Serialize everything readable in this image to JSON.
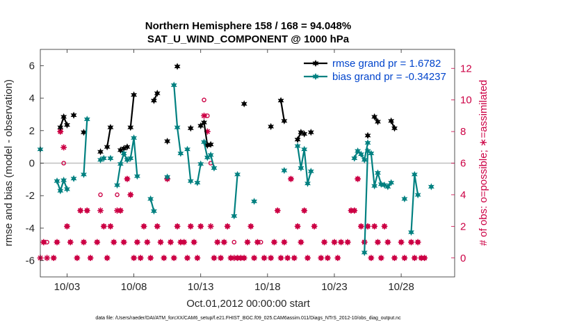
{
  "chart_data": {
    "type": "line",
    "title": "Northern Hemisphere 158 / 168 = 94.048%",
    "subtitle": "SAT_U_WIND_COMPONENT @ 1000 hPa",
    "xlabel": "Oct.01,2012 00:00:00 start",
    "ylabel": "rmse and bias (model - observation)",
    "y2label": "# of obs: o=possible; ∗=assimilated",
    "footnote": "data file: /Users/raeder/DAI/ATM_forcXX/CAM6_setup/f.e21.FHIST_BGC.f09_025.CAM6assim.011/Diags_NTrS_2012-10/obs_diag_output.nc",
    "xlim": [
      1.0,
      32.0
    ],
    "ylim": [
      -7,
      7
    ],
    "y2lim": [
      -1.2,
      13.2
    ],
    "x_ticks": [
      3,
      8,
      13,
      18,
      23,
      28
    ],
    "x_tick_labels": [
      "10/03",
      "10/08",
      "10/13",
      "10/18",
      "10/23",
      "10/28"
    ],
    "y_ticks": [
      -6,
      -4,
      -2,
      0,
      2,
      4,
      6
    ],
    "y2_ticks": [
      0,
      2,
      4,
      6,
      8,
      10,
      12
    ],
    "legend_position": "top-right",
    "grid": false,
    "zero_line": 0,
    "series": [
      {
        "name": "rmse grand pr = 1.6782",
        "axis": "left",
        "color": "#000000",
        "marker": "hexagram",
        "points": [
          [
            2.5,
            2.2
          ],
          [
            2.75,
            2.85
          ],
          [
            3.0,
            2.35
          ],
          null,
          [
            3.5,
            2.95
          ],
          null,
          [
            4.25,
            1.9
          ],
          null,
          [
            5.5,
            0.7
          ],
          null,
          [
            6.0,
            1.0
          ],
          [
            6.25,
            2.2
          ],
          null,
          [
            7.0,
            0.8
          ],
          [
            7.25,
            0.9
          ],
          [
            7.5,
            1.0
          ],
          null,
          [
            7.75,
            2.2
          ],
          [
            8.0,
            4.2
          ],
          null,
          [
            9.5,
            3.85
          ],
          [
            9.75,
            4.3
          ],
          null,
          [
            10.5,
            1.35
          ],
          null,
          [
            11.25,
            5.95
          ],
          null,
          [
            12.25,
            2.15
          ],
          null,
          [
            13.0,
            2.3
          ],
          null,
          [
            13.25,
            2.5
          ],
          [
            13.5,
            1.1
          ],
          [
            13.75,
            1.15
          ],
          null,
          [
            16.25,
            3.65
          ],
          null,
          [
            18.25,
            2.25
          ],
          null,
          [
            19.0,
            3.85
          ],
          [
            19.25,
            2.6
          ],
          null,
          [
            20.25,
            1.45
          ],
          [
            20.5,
            1.9
          ],
          [
            20.75,
            1.8
          ],
          null,
          [
            21.25,
            1.9
          ],
          null,
          [
            25.5,
            1.7
          ],
          null,
          [
            26.0,
            2.85
          ],
          [
            26.25,
            2.55
          ],
          null,
          [
            27.25,
            2.6
          ],
          [
            27.5,
            2.15
          ]
        ]
      },
      {
        "name": "bias grand pr = -0.34237",
        "axis": "left",
        "color": "#008080",
        "marker": "hexagram",
        "points": [
          [
            1.0,
            0.85
          ],
          null,
          [
            2.25,
            -1.1
          ],
          [
            2.5,
            -1.7
          ],
          [
            2.75,
            -1.05
          ],
          [
            3.0,
            -1.6
          ],
          null,
          [
            3.5,
            -0.95
          ],
          null,
          [
            4.25,
            -0.7
          ],
          [
            4.5,
            2.7
          ],
          null,
          [
            5.5,
            0.2
          ],
          [
            5.75,
            0.3
          ],
          null,
          [
            6.25,
            0.3
          ],
          null,
          [
            6.75,
            -1.35
          ],
          [
            7.0,
            -0.05
          ],
          [
            7.25,
            0.6
          ],
          [
            7.5,
            0.2
          ],
          null,
          [
            7.75,
            0.3
          ],
          [
            8.0,
            1.55
          ],
          [
            8.25,
            -0.8
          ],
          null,
          [
            9.25,
            -2.2
          ],
          [
            9.5,
            -2.95
          ],
          null,
          [
            10.5,
            -0.85
          ],
          null,
          [
            11.0,
            4.8
          ],
          [
            11.25,
            2.2
          ],
          [
            11.5,
            0.6
          ],
          null,
          [
            12.0,
            0.85
          ],
          [
            12.25,
            -1.1
          ],
          null,
          [
            12.75,
            -1.2
          ],
          [
            13.0,
            -0.05
          ],
          null,
          [
            13.25,
            1.3
          ],
          [
            13.5,
            0.35
          ],
          [
            13.75,
            0.5
          ],
          [
            14.0,
            -0.3
          ],
          null,
          [
            15.5,
            -3.25
          ],
          [
            15.75,
            -0.7
          ],
          null,
          [
            17.0,
            -2.35
          ],
          null,
          [
            19.25,
            -0.45
          ],
          null,
          [
            20.25,
            1.05
          ],
          [
            20.5,
            -0.3
          ],
          [
            20.75,
            0.85
          ],
          [
            21.0,
            -1.25
          ],
          [
            21.25,
            -0.5
          ],
          null,
          [
            24.5,
            0.3
          ],
          [
            24.75,
            0.75
          ],
          [
            25.0,
            0.55
          ],
          [
            25.25,
            0.2
          ],
          [
            25.5,
            1.25
          ],
          null,
          [
            25.25,
            -5.5
          ],
          [
            25.5,
            0.75
          ],
          [
            25.75,
            0.6
          ],
          [
            26.0,
            -1.4
          ],
          [
            26.25,
            -0.6
          ],
          [
            26.5,
            -1.3
          ],
          [
            26.75,
            -1.35
          ],
          [
            27.0,
            -1.45
          ],
          [
            27.25,
            -1.2
          ],
          null,
          [
            28.25,
            -2.2
          ],
          null,
          [
            28.75,
            -4.25
          ],
          [
            29.0,
            -0.7
          ],
          [
            29.25,
            -1.95
          ],
          null,
          [
            30.25,
            -1.45
          ]
        ]
      }
    ],
    "obs_possible": [
      [
        1.25,
        1
      ],
      [
        1.5,
        1
      ],
      [
        2.0,
        0
      ],
      [
        2.25,
        1
      ],
      [
        2.5,
        8
      ],
      [
        2.75,
        6
      ],
      [
        3.0,
        2
      ],
      [
        3.25,
        1
      ],
      [
        3.75,
        0
      ],
      [
        4.0,
        3
      ],
      [
        4.25,
        1
      ],
      [
        4.5,
        3
      ],
      [
        4.75,
        0
      ],
      [
        5.25,
        1
      ],
      [
        5.5,
        4
      ],
      [
        5.75,
        2
      ],
      [
        6.0,
        0
      ],
      [
        6.25,
        2
      ],
      [
        6.5,
        1
      ],
      [
        6.75,
        4
      ],
      [
        7.0,
        3
      ],
      [
        7.25,
        1
      ],
      [
        7.5,
        5
      ],
      [
        7.75,
        4
      ],
      [
        8.0,
        0
      ],
      [
        8.25,
        1
      ],
      [
        8.5,
        0
      ],
      [
        8.75,
        2
      ],
      [
        9.0,
        1
      ],
      [
        9.25,
        0
      ],
      [
        9.75,
        2
      ],
      [
        10.0,
        1
      ],
      [
        10.25,
        0
      ],
      [
        10.5,
        5
      ],
      [
        10.75,
        1
      ],
      [
        11.0,
        0
      ],
      [
        11.25,
        2
      ],
      [
        11.5,
        1
      ],
      [
        11.75,
        1
      ],
      [
        12.0,
        0
      ],
      [
        12.25,
        2
      ],
      [
        12.5,
        1
      ],
      [
        12.75,
        0
      ],
      [
        13.0,
        2
      ],
      [
        13.25,
        10
      ],
      [
        13.5,
        9
      ],
      [
        13.75,
        6
      ],
      [
        14.0,
        0
      ],
      [
        14.25,
        1
      ],
      [
        14.5,
        0
      ],
      [
        14.75,
        1
      ],
      [
        15.0,
        2
      ],
      [
        15.25,
        0
      ],
      [
        15.5,
        1
      ],
      [
        15.75,
        0
      ],
      [
        16.0,
        0
      ],
      [
        16.25,
        0
      ],
      [
        16.5,
        1
      ],
      [
        16.75,
        2
      ],
      [
        17.0,
        0
      ],
      [
        17.25,
        1
      ],
      [
        17.5,
        1
      ],
      [
        17.75,
        0
      ],
      [
        18.25,
        0
      ],
      [
        18.5,
        1
      ],
      [
        18.75,
        3
      ],
      [
        19.0,
        0
      ],
      [
        19.25,
        1
      ],
      [
        19.5,
        0
      ],
      [
        19.75,
        5
      ],
      [
        20.0,
        0
      ],
      [
        20.25,
        2
      ],
      [
        20.5,
        1
      ],
      [
        20.75,
        3
      ],
      [
        21.0,
        0
      ],
      [
        21.5,
        2
      ],
      [
        22.0,
        0
      ],
      [
        22.25,
        1
      ],
      [
        22.5,
        0
      ],
      [
        23.0,
        1
      ],
      [
        23.25,
        0
      ],
      [
        23.5,
        1
      ],
      [
        24.0,
        1
      ],
      [
        24.25,
        3
      ],
      [
        24.5,
        3
      ],
      [
        24.75,
        5
      ],
      [
        25.0,
        2
      ],
      [
        25.25,
        1
      ],
      [
        25.5,
        2
      ],
      [
        25.75,
        0
      ],
      [
        26.0,
        2
      ],
      [
        26.25,
        1
      ],
      [
        26.5,
        0
      ],
      [
        26.75,
        2
      ],
      [
        27.0,
        1
      ],
      [
        27.5,
        0
      ],
      [
        28.0,
        1
      ],
      [
        28.25,
        0
      ],
      [
        28.75,
        1
      ],
      [
        29.0,
        0
      ],
      [
        29.25,
        1
      ],
      [
        29.5,
        0
      ],
      [
        29.75,
        0
      ]
    ],
    "obs_assimilated": [
      [
        1.0,
        0
      ],
      [
        1.25,
        1
      ],
      [
        1.5,
        0
      ],
      [
        2.0,
        0
      ],
      [
        2.25,
        1
      ],
      [
        2.5,
        8
      ],
      [
        2.75,
        7
      ],
      [
        3.0,
        2
      ],
      [
        3.25,
        1
      ],
      [
        3.75,
        0
      ],
      [
        4.0,
        3
      ],
      [
        4.25,
        1
      ],
      [
        4.5,
        3
      ],
      [
        4.75,
        0
      ],
      [
        5.25,
        1
      ],
      [
        5.5,
        3
      ],
      [
        5.75,
        2
      ],
      [
        6.0,
        0
      ],
      [
        6.25,
        2
      ],
      [
        6.5,
        1
      ],
      [
        6.75,
        3
      ],
      [
        7.0,
        3
      ],
      [
        7.25,
        1
      ],
      [
        7.5,
        5
      ],
      [
        7.75,
        4
      ],
      [
        8.0,
        0
      ],
      [
        8.25,
        1
      ],
      [
        8.5,
        0
      ],
      [
        8.75,
        2
      ],
      [
        9.0,
        1
      ],
      [
        9.25,
        0
      ],
      [
        9.75,
        2
      ],
      [
        10.0,
        1
      ],
      [
        10.25,
        0
      ],
      [
        10.5,
        5
      ],
      [
        10.75,
        1
      ],
      [
        11.0,
        0
      ],
      [
        11.25,
        2
      ],
      [
        11.5,
        1
      ],
      [
        11.75,
        1
      ],
      [
        12.0,
        0
      ],
      [
        12.25,
        2
      ],
      [
        12.5,
        1
      ],
      [
        12.75,
        0
      ],
      [
        13.0,
        2
      ],
      [
        13.25,
        9
      ],
      [
        13.5,
        8
      ],
      [
        13.75,
        2
      ],
      [
        14.0,
        0
      ],
      [
        14.25,
        1
      ],
      [
        14.5,
        0
      ],
      [
        14.75,
        1
      ],
      [
        15.0,
        2
      ],
      [
        15.25,
        0
      ],
      [
        15.5,
        0
      ],
      [
        15.75,
        0
      ],
      [
        16.0,
        0
      ],
      [
        16.25,
        0
      ],
      [
        16.5,
        1
      ],
      [
        16.75,
        2
      ],
      [
        17.0,
        0
      ],
      [
        17.25,
        1
      ],
      [
        17.75,
        0
      ],
      [
        18.25,
        0
      ],
      [
        18.5,
        1
      ],
      [
        18.75,
        3
      ],
      [
        19.0,
        0
      ],
      [
        19.25,
        1
      ],
      [
        19.5,
        0
      ],
      [
        19.75,
        5
      ],
      [
        20.0,
        0
      ],
      [
        20.25,
        2
      ],
      [
        20.5,
        1
      ],
      [
        20.75,
        3
      ],
      [
        21.0,
        0
      ],
      [
        21.5,
        2
      ],
      [
        22.0,
        0
      ],
      [
        22.25,
        1
      ],
      [
        22.5,
        0
      ],
      [
        23.0,
        1
      ],
      [
        23.25,
        0
      ],
      [
        23.5,
        1
      ],
      [
        24.0,
        1
      ],
      [
        24.25,
        3
      ],
      [
        24.5,
        3
      ],
      [
        24.75,
        5
      ],
      [
        25.0,
        2
      ],
      [
        25.25,
        1
      ],
      [
        25.5,
        2
      ],
      [
        25.75,
        0
      ],
      [
        26.0,
        2
      ],
      [
        26.25,
        1
      ],
      [
        26.5,
        0
      ],
      [
        26.75,
        2
      ],
      [
        27.0,
        1
      ],
      [
        27.5,
        0
      ],
      [
        28.0,
        1
      ],
      [
        28.25,
        0
      ],
      [
        28.75,
        1
      ],
      [
        29.0,
        0
      ],
      [
        29.25,
        1
      ],
      [
        29.5,
        0
      ],
      [
        29.75,
        0
      ]
    ],
    "obs_color": "#cc0044",
    "zero_line_color": "#bfbfbf"
  }
}
